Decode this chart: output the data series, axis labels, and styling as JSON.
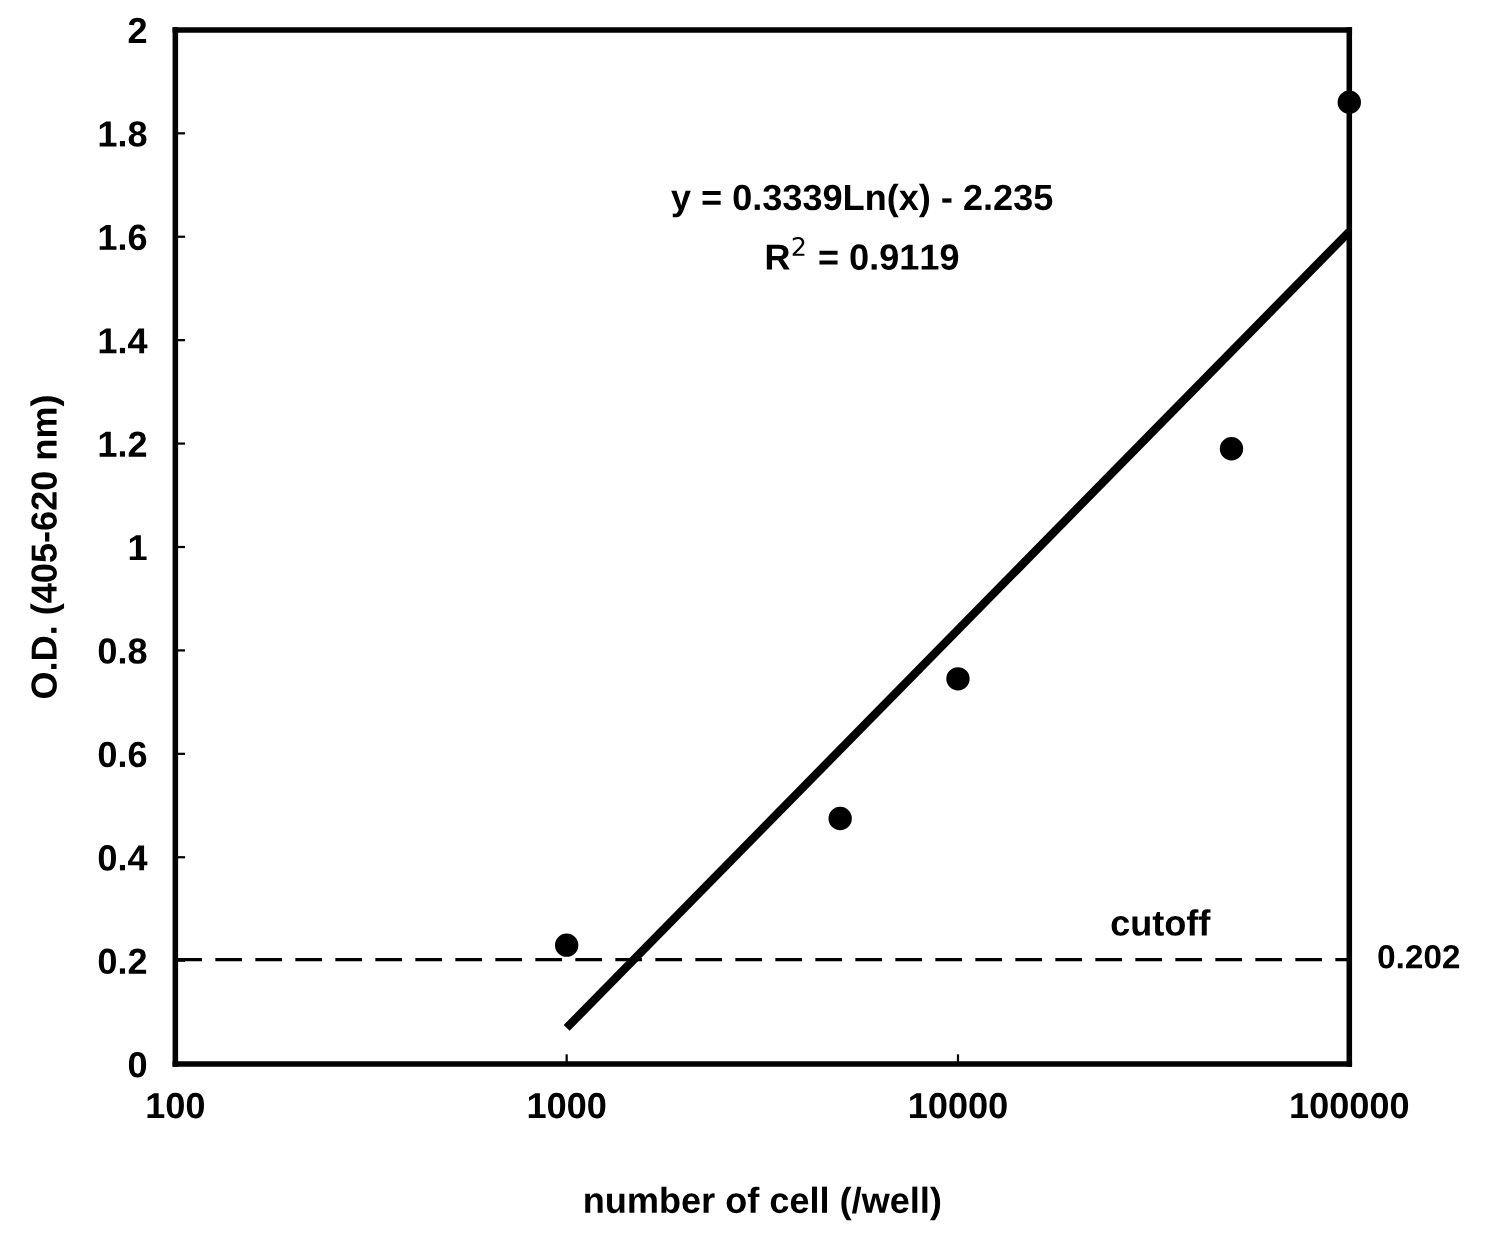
{
  "chart_data": {
    "type": "scatter",
    "xlabel": "number of cell (/well)",
    "ylabel": "O.D. (405-620 nm)",
    "log": "x",
    "xlim": [
      100,
      100000
    ],
    "xticks": [
      100,
      1000,
      10000,
      100000
    ],
    "ylim": [
      0,
      2
    ],
    "yticks": [
      0,
      0.2,
      0.4,
      0.6,
      0.8,
      1,
      1.2,
      1.4,
      1.6,
      1.8,
      2
    ],
    "grid": false,
    "series": [
      {
        "color": "#000000",
        "marker": "circle",
        "x": [
          1000,
          5000,
          10000,
          50000,
          100000
        ],
        "values": [
          0.23,
          0.475,
          0.745,
          1.19,
          1.86
        ]
      },
      {
        "type": "line",
        "color": "#000000",
        "x": [
          1000,
          100000
        ],
        "values": [
          0.07,
          1.61
        ],
        "line_style": "solid",
        "marker": "none"
      }
    ],
    "ref_lines": [
      {
        "axis": "y",
        "value": 0.202,
        "label": "cutoff",
        "line_style": "dashed",
        "color": "#000000"
      }
    ],
    "annotations": [
      "y = 0.3339Ln(x) - 2.235",
      "R$^{2}$ = 0.9119",
      "0.202"
    ]
  }
}
